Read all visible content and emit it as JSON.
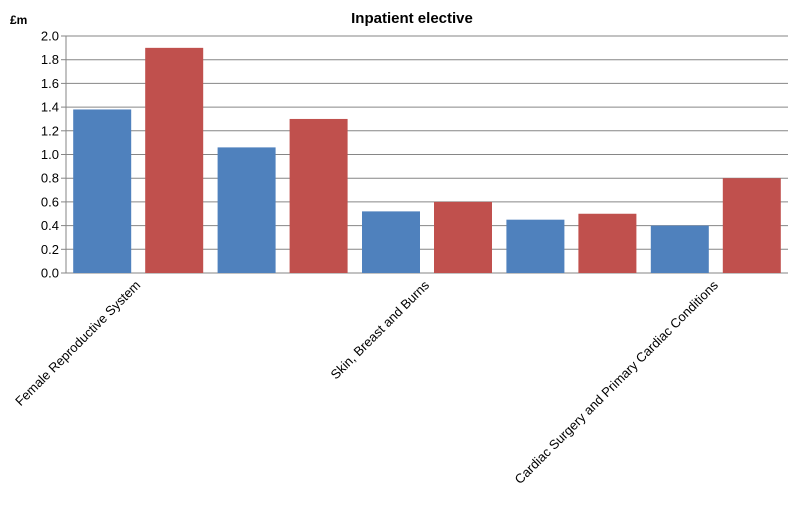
{
  "chart_data": {
    "type": "bar",
    "title": "Inpatient elective",
    "ylabel": "£m",
    "xlabel": "",
    "ylim": [
      0,
      2.0
    ],
    "yticks": [
      "0.0",
      "0.2",
      "0.4",
      "0.6",
      "0.8",
      "1.0",
      "1.2",
      "1.4",
      "1.6",
      "1.8",
      "2.0"
    ],
    "grid": true,
    "categories": [
      "Female Reproductive System",
      "",
      "Skin, Breast and Burns",
      "",
      "Cardiac Surgery and Primary Cardiac Conditions"
    ],
    "series": [
      {
        "color": "#4F81BD",
        "values": [
          1.38,
          1.06,
          0.52,
          0.45,
          0.4
        ]
      },
      {
        "color": "#C0504D",
        "values": [
          1.9,
          1.3,
          0.6,
          0.5,
          0.8
        ]
      }
    ]
  },
  "colors": {
    "grid": "#868686",
    "axis": "#868686",
    "background": "#ffffff"
  }
}
